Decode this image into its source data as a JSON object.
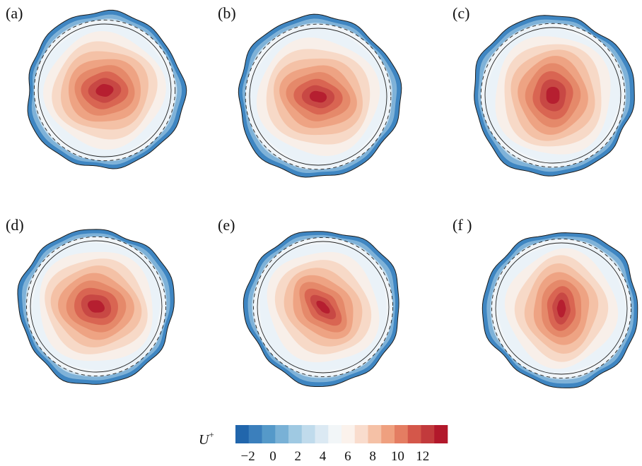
{
  "figure": {
    "panels": [
      {
        "label": "(a)",
        "letter": "a",
        "core_shape": "wide",
        "rotation": -5,
        "ring_seed": 1
      },
      {
        "label": "(b)",
        "letter": "b",
        "core_shape": "oval",
        "rotation": 10,
        "ring_seed": 2
      },
      {
        "label": "(c)",
        "letter": "c",
        "core_shape": "round",
        "rotation": 0,
        "ring_seed": 3
      },
      {
        "label": "(d)",
        "letter": "d",
        "core_shape": "wide",
        "rotation": 15,
        "ring_seed": 4
      },
      {
        "label": "(e)",
        "letter": "e",
        "core_shape": "diagonal",
        "rotation": 45,
        "ring_seed": 5
      },
      {
        "label": "(f )",
        "letter": "f",
        "core_shape": "vertical",
        "rotation": 90,
        "ring_seed": 6
      }
    ],
    "colorbar": {
      "label": "U",
      "label_superscript": "+",
      "ticks": [
        "−2",
        "0",
        "2",
        "4",
        "6",
        "8",
        "10",
        "12"
      ],
      "tick_values": [
        -2,
        0,
        2,
        4,
        6,
        8,
        10,
        12
      ],
      "range": [
        -3,
        14
      ],
      "colors": [
        "#2166ac",
        "#3b7fbc",
        "#5599c9",
        "#79b1d6",
        "#9fc9e2",
        "#c0dbec",
        "#dbe9f3",
        "#f2f6f8",
        "#fbf2ec",
        "#f9dccd",
        "#f5c1a6",
        "#efa07f",
        "#e47d62",
        "#d4574a",
        "#c23a3c",
        "#b2182b"
      ]
    },
    "contour_palette": [
      "#eaf2f8",
      "#f8efe9",
      "#f7d9c7",
      "#f4c1a6",
      "#eea383",
      "#e5896a",
      "#d96552",
      "#c84844",
      "#b61f30"
    ]
  }
}
